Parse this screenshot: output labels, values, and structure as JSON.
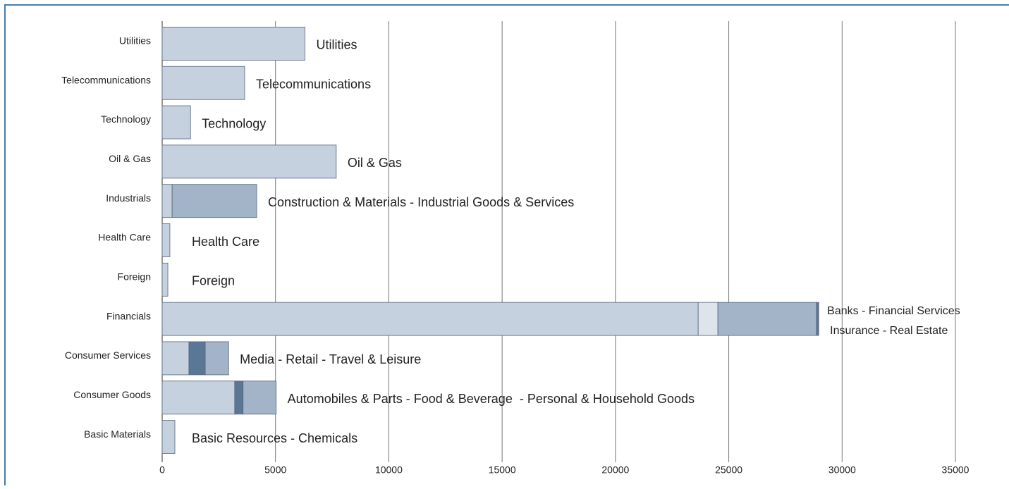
{
  "chart_data": {
    "type": "stacked-bar-horizontal",
    "categories": [
      "Utilities",
      "Telecommunications",
      "Technology",
      "Oil & Gas",
      "Industrials",
      "Health Care",
      "Foreign",
      "Financials",
      "Consumer Services",
      "Consumer Goods",
      "Basic Materials"
    ],
    "series": [
      {
        "color": "#c5d1de",
        "values": [
          6300,
          3640,
          1250,
          7680,
          440,
          340,
          250,
          23650,
          1180,
          3200,
          560
        ]
      },
      {
        "colors": [
          null,
          null,
          null,
          null,
          null,
          null,
          null,
          "#dde4ec",
          "#5a7796",
          "#5a7796",
          null
        ],
        "values": [
          null,
          null,
          null,
          null,
          null,
          null,
          null,
          870,
          720,
          370,
          null
        ]
      },
      {
        "color": "#a3b4c9",
        "values": [
          null,
          null,
          null,
          null,
          3730,
          null,
          null,
          4350,
          1030,
          1460,
          null
        ]
      },
      {
        "color": "#5a7796",
        "values": [
          null,
          null,
          null,
          null,
          null,
          null,
          null,
          100,
          null,
          null,
          null
        ]
      }
    ],
    "bar_labels": [
      [
        "Utilities"
      ],
      [
        "Telecommunications"
      ],
      [
        "Technology"
      ],
      [
        "Oil & Gas"
      ],
      [
        "Construction & Materials - Industrial Goods & Services"
      ],
      [
        "Health Care"
      ],
      [
        "Foreign"
      ],
      [
        "Banks - Financial Services",
        "Insurance - Real Estate"
      ],
      [
        "Media - Retail - Travel & Leisure"
      ],
      [
        "Automobiles & Parts - Food & Beverage  - Personal & Household Goods"
      ],
      [
        "Basic Resources - Chemicals"
      ]
    ],
    "xlim": [
      0,
      35000
    ],
    "xticks": [
      0,
      5000,
      10000,
      15000,
      20000,
      25000,
      30000,
      35000
    ],
    "grid": true
  }
}
